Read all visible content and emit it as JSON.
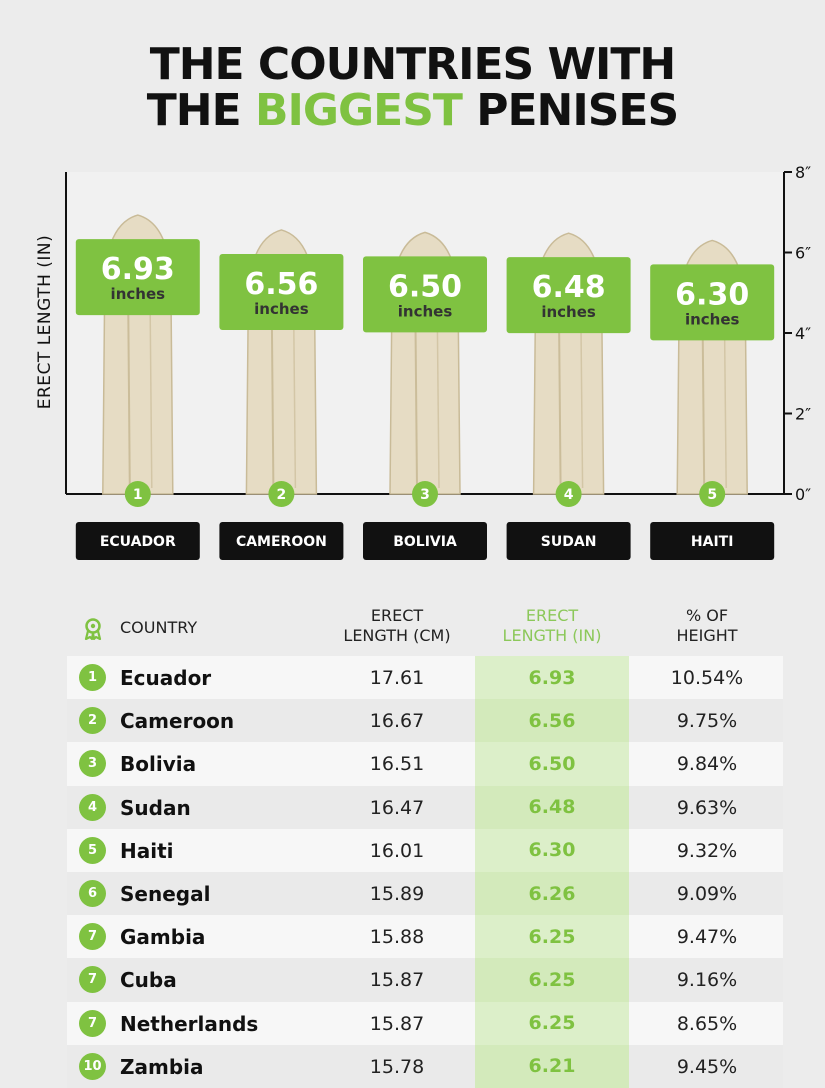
{
  "title": {
    "line1": "THE COUNTRIES WITH",
    "line2_pre": "THE ",
    "line2_accent": "BIGGEST",
    "line2_post": " PENISES"
  },
  "colors": {
    "accent": "#7fc241",
    "label_bg": "#111111",
    "banana": "#e6dcc4"
  },
  "chart_data": {
    "type": "bar",
    "ylabel": "ERECT LENGTH (IN)",
    "ylim": [
      0,
      8
    ],
    "y_ticks": [
      "0″",
      "2″",
      "4″",
      "6″",
      "8″"
    ],
    "y_tick_values": [
      0,
      2,
      4,
      6,
      8
    ],
    "grid": false,
    "categories": [
      "ECUADOR",
      "CAMEROON",
      "BOLIVIA",
      "SUDAN",
      "HAITI"
    ],
    "ranks": [
      "1",
      "2",
      "3",
      "4",
      "5"
    ],
    "values": [
      6.93,
      6.56,
      6.5,
      6.48,
      6.3
    ],
    "value_labels": [
      "6.93",
      "6.56",
      "6.50",
      "6.48",
      "6.30"
    ],
    "unit_label": "inches",
    "bar_style": "banana"
  },
  "table": {
    "headers": {
      "country": "COUNTRY",
      "cm_line1": "ERECT",
      "cm_line2": "LENGTH (CM)",
      "in_line1": "ERECT",
      "in_line2": "LENGTH (IN)",
      "pct_line1": "% OF",
      "pct_line2": "HEIGHT"
    },
    "rows": [
      {
        "rank": "1",
        "country": "Ecuador",
        "cm": "17.61",
        "inches": "6.93",
        "pct": "10.54%"
      },
      {
        "rank": "2",
        "country": "Cameroon",
        "cm": "16.67",
        "inches": "6.56",
        "pct": "9.75%"
      },
      {
        "rank": "3",
        "country": "Bolivia",
        "cm": "16.51",
        "inches": "6.50",
        "pct": "9.84%"
      },
      {
        "rank": "4",
        "country": "Sudan",
        "cm": "16.47",
        "inches": "6.48",
        "pct": "9.63%"
      },
      {
        "rank": "5",
        "country": "Haiti",
        "cm": "16.01",
        "inches": "6.30",
        "pct": "9.32%"
      },
      {
        "rank": "6",
        "country": "Senegal",
        "cm": "15.89",
        "inches": "6.26",
        "pct": "9.09%"
      },
      {
        "rank": "7",
        "country": "Gambia",
        "cm": "15.88",
        "inches": "6.25",
        "pct": "9.47%"
      },
      {
        "rank": "7",
        "country": "Cuba",
        "cm": "15.87",
        "inches": "6.25",
        "pct": "9.16%"
      },
      {
        "rank": "7",
        "country": "Netherlands",
        "cm": "15.87",
        "inches": "6.25",
        "pct": "8.65%"
      },
      {
        "rank": "10",
        "country": "Zambia",
        "cm": "15.78",
        "inches": "6.21",
        "pct": "9.45%"
      }
    ]
  }
}
